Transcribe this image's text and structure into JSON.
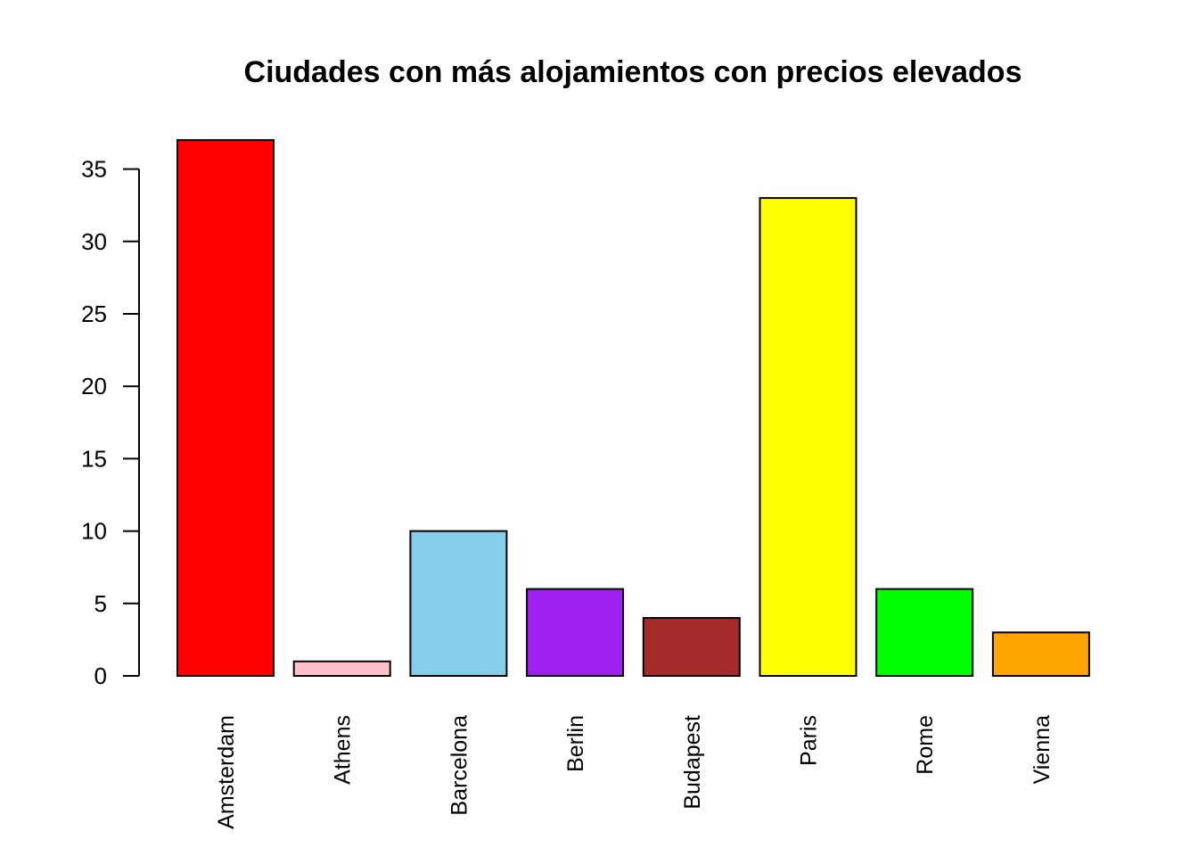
{
  "chart_data": {
    "type": "bar",
    "title": "Ciudades con más alojamientos con precios elevados",
    "xlabel": "",
    "ylabel": "",
    "categories": [
      "Amsterdam",
      "Athens",
      "Barcelona",
      "Berlin",
      "Budapest",
      "Paris",
      "Rome",
      "Vienna"
    ],
    "values": [
      37,
      1,
      10,
      6,
      4,
      33,
      6,
      3
    ],
    "colors": [
      "#ff0000",
      "#ffc0cb",
      "#87ceeb",
      "#a020f0",
      "#a52a2a",
      "#ffff00",
      "#00ff00",
      "#ffa500"
    ],
    "yticks": [
      0,
      5,
      10,
      15,
      20,
      25,
      30,
      35
    ],
    "ylim": [
      0,
      37
    ],
    "grid": false,
    "legend": "none",
    "x_label_orientation": "vertical"
  }
}
